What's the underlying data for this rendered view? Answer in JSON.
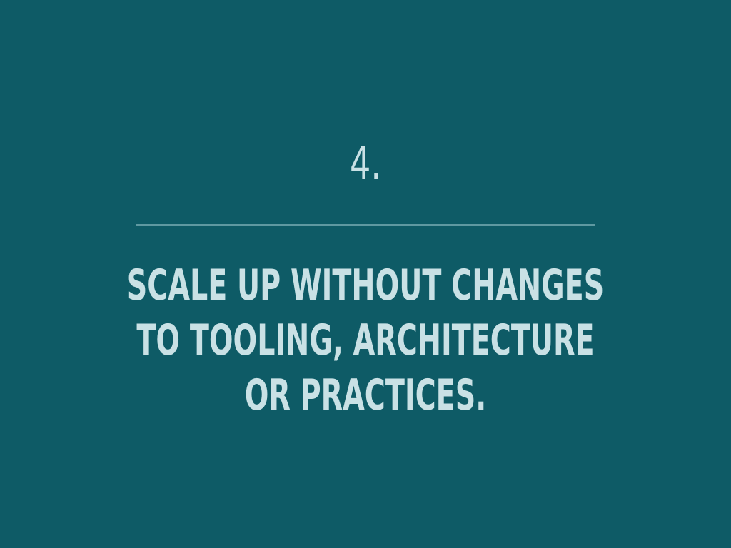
{
  "slide": {
    "number": "4.",
    "statement_lines": [
      "SCALE UP WITHOUT CHANGES",
      "TO TOOLING, ARCHITECTURE",
      "OR PRACTICES."
    ]
  },
  "colors": {
    "background": "#0e5b66",
    "text": "#c9e1e5",
    "divider": "#5f99a1"
  }
}
